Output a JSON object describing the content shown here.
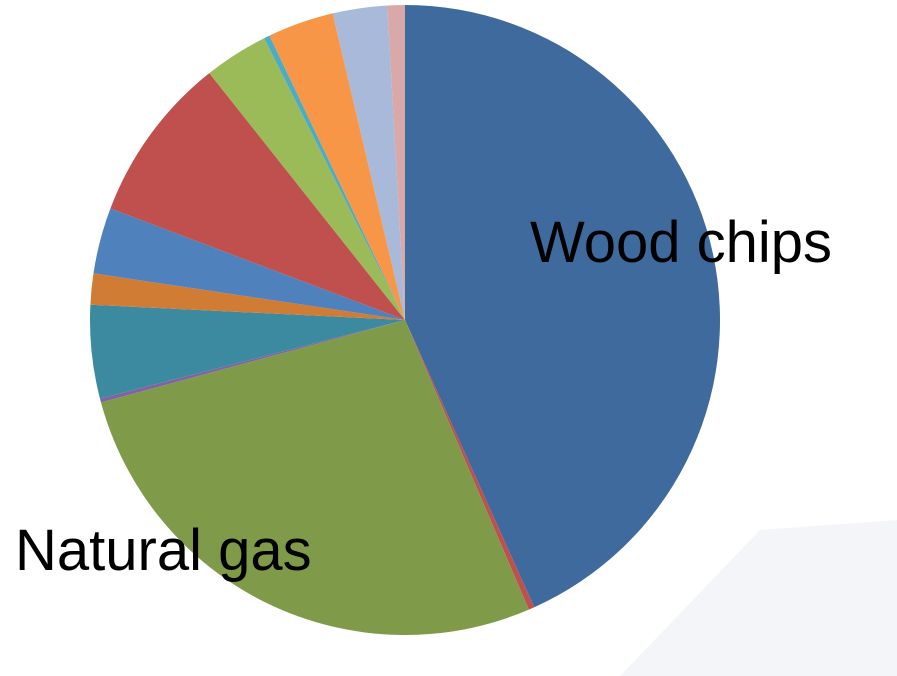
{
  "chart_data": {
    "type": "pie",
    "categories": [
      "Wood chips",
      null,
      "Natural gas",
      null,
      null,
      null,
      null,
      null,
      null,
      null,
      null,
      null,
      null
    ],
    "values": [
      43.4,
      0.3,
      27.3,
      0.2,
      4.8,
      1.6,
      3.4,
      8.6,
      3.3,
      0.3,
      3.4,
      2.8,
      0.9
    ],
    "colors": [
      "#3f6a9e",
      "#c0504d",
      "#7f9a48",
      "#8064a2",
      "#3b8aa0",
      "#d07c35",
      "#4f81bd",
      "#c0504d",
      "#9bbb59",
      "#4bacc6",
      "#f79646",
      "#a9b9d9",
      "#d9a8a8"
    ]
  }
}
